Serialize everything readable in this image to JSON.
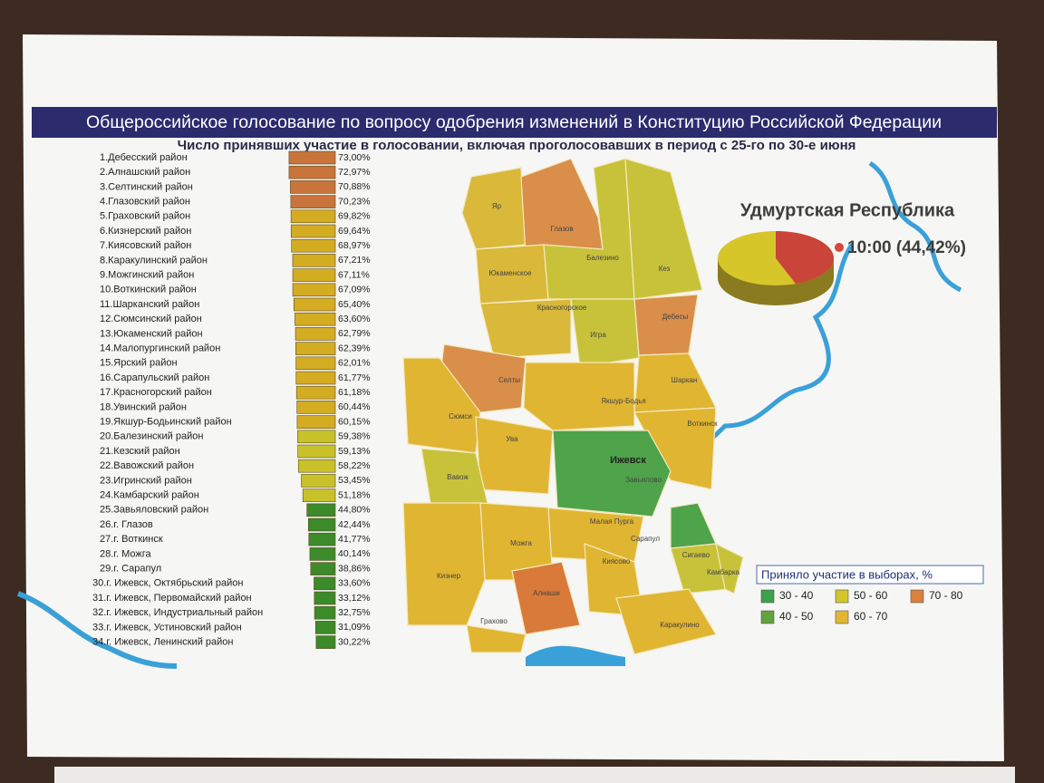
{
  "header": {
    "title": "Общероссийское голосование по вопросу одобрения изменений в Конституцию Российской Федерации",
    "subtitle": "Число принявших участие в голосовании, включая проголосовавших в период с 25-го по 30-е июня"
  },
  "ranking": {
    "rows": [
      {
        "label": "1.Дебесский район",
        "value": 73.0,
        "value_label": "73,00%",
        "color": "#c8743a"
      },
      {
        "label": "2.Алнашский район",
        "value": 72.97,
        "value_label": "72,97%",
        "color": "#c8743a"
      },
      {
        "label": "3.Селтинский район",
        "value": 70.88,
        "value_label": "70,88%",
        "color": "#c8743a"
      },
      {
        "label": "4.Глазовский район",
        "value": 70.23,
        "value_label": "70,23%",
        "color": "#c8743a"
      },
      {
        "label": "5.Граховский район",
        "value": 69.82,
        "value_label": "69,82%",
        "color": "#d4ac22"
      },
      {
        "label": "6.Кизнерский район",
        "value": 69.64,
        "value_label": "69,64%",
        "color": "#d4ac22"
      },
      {
        "label": "7.Киясовский район",
        "value": 68.97,
        "value_label": "68,97%",
        "color": "#d4ac22"
      },
      {
        "label": "8.Каракулинский район",
        "value": 67.21,
        "value_label": "67,21%",
        "color": "#d4ac22"
      },
      {
        "label": "9.Можгинский район",
        "value": 67.11,
        "value_label": "67,11%",
        "color": "#d4ac22"
      },
      {
        "label": "10.Воткинский район",
        "value": 67.09,
        "value_label": "67,09%",
        "color": "#d4ac22"
      },
      {
        "label": "11.Шарканский район",
        "value": 65.4,
        "value_label": "65,40%",
        "color": "#d4ac22"
      },
      {
        "label": "12.Сюмсинский район",
        "value": 63.6,
        "value_label": "63,60%",
        "color": "#d4ac22"
      },
      {
        "label": "13.Юкаменский район",
        "value": 62.79,
        "value_label": "62,79%",
        "color": "#d4ac22"
      },
      {
        "label": "14.Малопургинский район",
        "value": 62.39,
        "value_label": "62,39%",
        "color": "#d4ac22"
      },
      {
        "label": "15.Ярский район",
        "value": 62.01,
        "value_label": "62,01%",
        "color": "#d4ac22"
      },
      {
        "label": "16.Сарапульский район",
        "value": 61.77,
        "value_label": "61,77%",
        "color": "#d4ac22"
      },
      {
        "label": "17.Красногорский район",
        "value": 61.18,
        "value_label": "61,18%",
        "color": "#d4ac22"
      },
      {
        "label": "18.Увинский район",
        "value": 60.44,
        "value_label": "60,44%",
        "color": "#d4ac22"
      },
      {
        "label": "19.Якшур-Бодьинский район",
        "value": 60.15,
        "value_label": "60,15%",
        "color": "#d4ac22"
      },
      {
        "label": "20.Балезинский район",
        "value": 59.38,
        "value_label": "59,38%",
        "color": "#c9c12a"
      },
      {
        "label": "21.Кезский район",
        "value": 59.13,
        "value_label": "59,13%",
        "color": "#c9c12a"
      },
      {
        "label": "22.Вавожский район",
        "value": 58.22,
        "value_label": "58,22%",
        "color": "#c9c12a"
      },
      {
        "label": "23.Игринский район",
        "value": 53.45,
        "value_label": "53,45%",
        "color": "#c9c12a"
      },
      {
        "label": "24.Камбарский район",
        "value": 51.18,
        "value_label": "51,18%",
        "color": "#c9c12a"
      },
      {
        "label": "25.Завьяловский район",
        "value": 44.8,
        "value_label": "44,80%",
        "color": "#3c8a2a"
      },
      {
        "label": "26.г. Глазов",
        "value": 42.44,
        "value_label": "42,44%",
        "color": "#3c8a2a"
      },
      {
        "label": "27.г. Воткинск",
        "value": 41.77,
        "value_label": "41,77%",
        "color": "#3c8a2a"
      },
      {
        "label": "28.г. Можга",
        "value": 40.14,
        "value_label": "40,14%",
        "color": "#3c8a2a"
      },
      {
        "label": "29.г. Сарапул",
        "value": 38.86,
        "value_label": "38,86%",
        "color": "#3c8a2a"
      },
      {
        "label": "30.г. Ижевск, Октябрьский район",
        "value": 33.6,
        "value_label": "33,60%",
        "color": "#3c8a2a"
      },
      {
        "label": "31.г. Ижевск, Первомайский район",
        "value": 33.12,
        "value_label": "33,12%",
        "color": "#3c8a2a"
      },
      {
        "label": "32.г. Ижевск, Индустриальный район",
        "value": 32.75,
        "value_label": "32,75%",
        "color": "#3c8a2a"
      },
      {
        "label": "33.г. Ижевск, Устиновский район",
        "value": 31.09,
        "value_label": "31,09%",
        "color": "#3c8a2a"
      },
      {
        "label": "34.г. Ижевск, Ленинский район",
        "value": 30.22,
        "value_label": "30,22%",
        "color": "#3c8a2a"
      }
    ]
  },
  "map": {
    "regions": [
      "Яр",
      "Глазов",
      "Юкаменское",
      "Балезино",
      "Кез",
      "Красногорское",
      "Дебесы",
      "Игра",
      "Селты",
      "Шаркан",
      "Сюмси",
      "Якшур-Бодья",
      "Воткинск",
      "Ува",
      "Ижевск",
      "Завьялово",
      "Вавож",
      "Малая Пурга",
      "Сарапул",
      "Можга",
      "Кизнер",
      "Киясово",
      "Алнаши",
      "Сигаево",
      "Камбарка",
      "Грахово",
      "Каракулино"
    ]
  },
  "summary": {
    "region": "Удмуртская Республика",
    "turnout": {
      "value": 44.42,
      "label": "10:00 (44,42%)"
    }
  },
  "legend": {
    "title": "Приняло участие в выборах, %",
    "items": [
      {
        "label": "30 - 40",
        "color": "#3da04a"
      },
      {
        "label": "40 - 50",
        "color": "#63a23e"
      },
      {
        "label": "50 - 60",
        "color": "#d4c52c"
      },
      {
        "label": "60 - 70",
        "color": "#e2b632"
      },
      {
        "label": "70 - 80",
        "color": "#d9803a"
      }
    ]
  }
}
